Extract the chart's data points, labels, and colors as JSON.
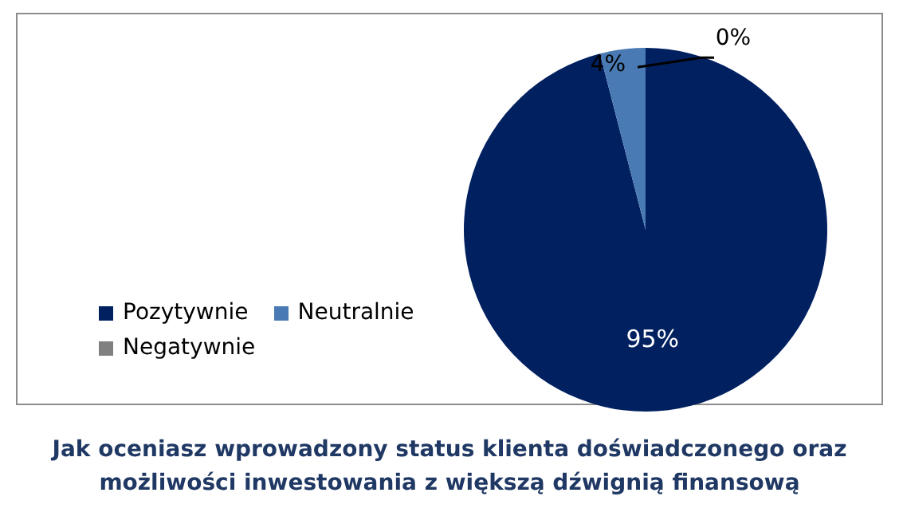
{
  "chart_data": {
    "type": "pie",
    "title": "Jak oceniasz wprowadzony status klienta doświadczonego oraz możliwości inwestowania z większą dźwignią finansową",
    "categories": [
      "Pozytywnie",
      "Neutralnie",
      "Negatywnie"
    ],
    "values": [
      95,
      4,
      0
    ],
    "colors": [
      "#002060",
      "#4a7ab4",
      "#808080"
    ],
    "value_labels": [
      "95%",
      "4%",
      "0%"
    ],
    "legend": "bottom left"
  }
}
